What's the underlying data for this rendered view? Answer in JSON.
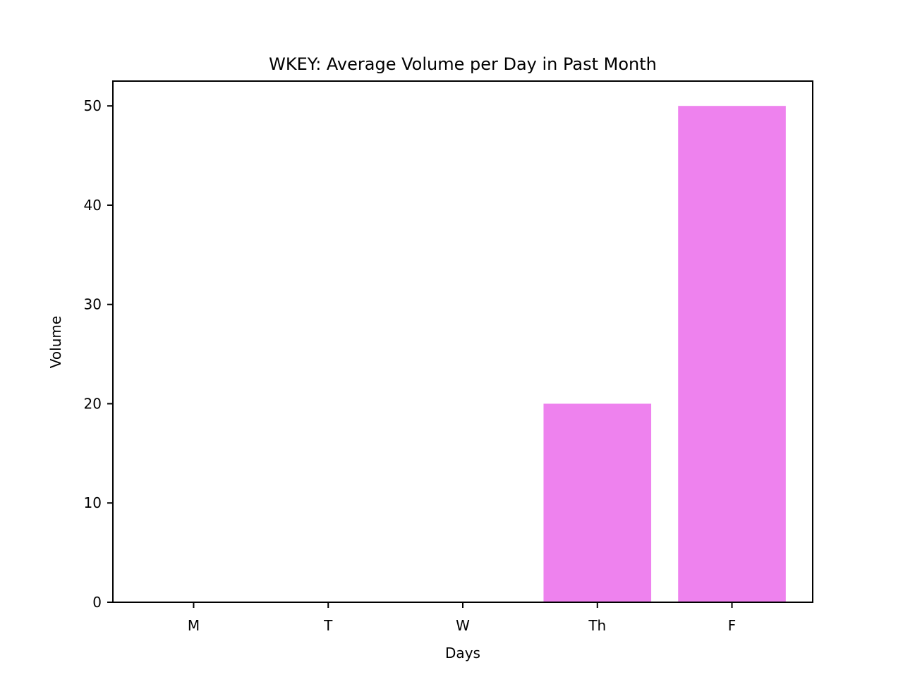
{
  "chart_data": {
    "type": "bar",
    "title": "WKEY: Average Volume per Day in Past Month",
    "xlabel": "Days",
    "ylabel": "Volume",
    "categories": [
      "M",
      "T",
      "W",
      "Th",
      "F"
    ],
    "values": [
      0,
      0,
      0,
      20,
      50
    ],
    "ylim": [
      0,
      52.5
    ],
    "yticks": [
      0,
      10,
      20,
      30,
      40,
      50
    ],
    "bar_color": "#ee82ee",
    "grid": false,
    "legend": "none"
  }
}
